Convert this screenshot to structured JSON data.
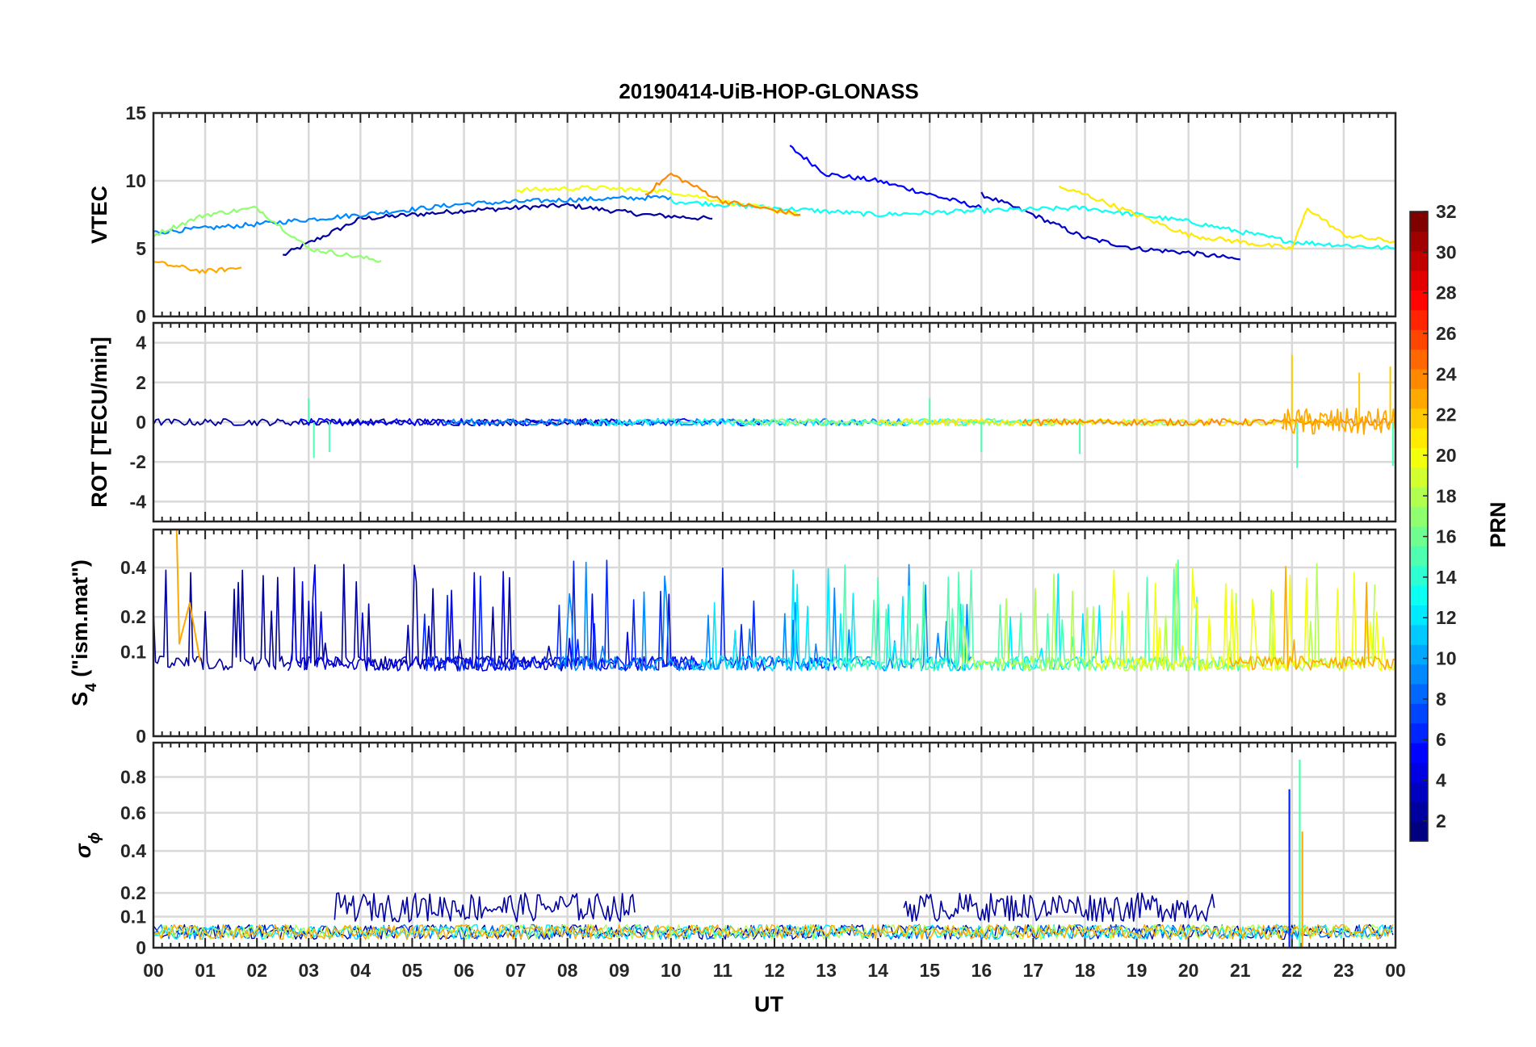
{
  "chart_data": [
    {
      "type": "line",
      "panel": "vtec",
      "title": "20190414-UiB-HOP-GLONASS",
      "ylabel": "VTEC",
      "xlabel": "",
      "ylim": [
        0,
        15
      ],
      "yticks": [
        0,
        5,
        10,
        15
      ],
      "series_note": "Multiple satellite tracks colored by PRN",
      "series": [
        {
          "name": "PRN 2",
          "prn": 2,
          "x": [
            2.5,
            4,
            6,
            8,
            9.5,
            10.8
          ],
          "y": [
            4.5,
            7.2,
            7.8,
            8.2,
            7.5,
            7.2
          ]
        },
        {
          "name": "PRN 5",
          "prn": 5,
          "x": [
            12.3,
            13,
            14,
            15,
            16
          ],
          "y": [
            12.5,
            10.5,
            10,
            9,
            8
          ]
        },
        {
          "name": "PRN 3",
          "prn": 3,
          "x": [
            16,
            17,
            18,
            19,
            20,
            21
          ],
          "y": [
            9,
            7.5,
            5.8,
            5,
            4.7,
            4.2
          ]
        },
        {
          "name": "PRN 9",
          "prn": 9,
          "x": [
            0,
            2,
            4,
            6,
            8,
            10
          ],
          "y": [
            6.2,
            6.8,
            7.5,
            8.3,
            8.6,
            8.8
          ]
        },
        {
          "name": "PRN 13",
          "prn": 13,
          "x": [
            10,
            12,
            14,
            16,
            18,
            20,
            22,
            24
          ],
          "y": [
            8.5,
            8,
            7.5,
            7.8,
            8,
            7,
            5.5,
            5
          ]
        },
        {
          "name": "PRN 17",
          "prn": 17,
          "x": [
            0,
            1,
            2,
            3,
            4.4
          ],
          "y": [
            6,
            7.5,
            8,
            5,
            4.1
          ]
        },
        {
          "name": "PRN 20",
          "prn": 20,
          "x": [
            7,
            8.5,
            10,
            11,
            12.5
          ],
          "y": [
            9.3,
            9.5,
            9.2,
            8.5,
            7.5
          ]
        },
        {
          "name": "PRN 23",
          "prn": 23,
          "x": [
            0,
            1,
            1.7
          ],
          "y": [
            4,
            3.3,
            3.6
          ]
        },
        {
          "name": "PRN 24",
          "prn": 24,
          "x": [
            9.5,
            10,
            11,
            12.5
          ],
          "y": [
            9,
            10.5,
            8.5,
            7.5
          ]
        },
        {
          "name": "PRN 21",
          "prn": 21,
          "x": [
            17.5,
            18,
            19,
            20,
            21,
            22,
            22.3,
            23,
            24
          ],
          "y": [
            9.5,
            9,
            7.5,
            6,
            5.5,
            5,
            8,
            6,
            5.5
          ]
        }
      ]
    },
    {
      "type": "line",
      "panel": "rot",
      "ylabel": "ROT [TECU/min]",
      "ylim": [
        -5,
        5
      ],
      "yticks": [
        -4,
        -2,
        0,
        2,
        4
      ],
      "series_note": "Rate of TEC near 0 with spikes around 03, 15 and 22-24 UT",
      "spikes": [
        {
          "x": 3.0,
          "y": 1.2
        },
        {
          "x": 3.1,
          "y": -1.8
        },
        {
          "x": 3.4,
          "y": -1.5
        },
        {
          "x": 15.0,
          "y": 1.2
        },
        {
          "x": 16.0,
          "y": -1.5
        },
        {
          "x": 17.9,
          "y": -1.6
        },
        {
          "x": 22.0,
          "y": 3.4
        },
        {
          "x": 22.1,
          "y": -2.3
        },
        {
          "x": 23.3,
          "y": 2.5
        },
        {
          "x": 23.9,
          "y": 2.8
        },
        {
          "x": 23.95,
          "y": -2.2
        }
      ]
    },
    {
      "type": "line",
      "panel": "s4",
      "ylabel_main": "S",
      "ylabel_sub": "4",
      "ylabel_rest": " (\"ism.mat\")",
      "ylim": [
        0,
        0.6
      ],
      "ylim_note": "nonlinear (sqrt-like) axis",
      "yticks": [
        0,
        0.1,
        0.2,
        0.4
      ],
      "series_note": "Amplitude scintillation index, baseline ~0.05-0.1 with bursts to ~0.5"
    },
    {
      "type": "line",
      "panel": "sigma_phi",
      "ylabel_main": "σ",
      "ylabel_sub": "ϕ",
      "ylim": [
        0,
        1.0
      ],
      "ylim_note": "nonlinear at low end",
      "yticks": [
        0,
        0.1,
        0.2,
        0.4,
        0.6,
        0.8
      ],
      "series_note": "Phase scintillation near 0.05, PRN 2 ~0.15 between 03-10 and 14-21 UT, spikes 0.73 and 0.9 at 22 UT",
      "spikes": [
        {
          "x": 21.95,
          "y": 0.73,
          "prn": 6
        },
        {
          "x": 22.15,
          "y": 0.9,
          "prn": 15
        },
        {
          "x": 22.2,
          "y": 0.5,
          "prn": 23
        }
      ]
    }
  ],
  "x_axis": {
    "label": "UT",
    "range": [
      0,
      24
    ],
    "ticks": [
      "00",
      "01",
      "02",
      "03",
      "04",
      "05",
      "06",
      "07",
      "08",
      "09",
      "10",
      "11",
      "12",
      "13",
      "14",
      "15",
      "16",
      "17",
      "18",
      "19",
      "20",
      "21",
      "22",
      "23",
      "00"
    ]
  },
  "colorbar": {
    "label": "PRN",
    "range": [
      1,
      32
    ],
    "ticks": [
      2,
      4,
      6,
      8,
      10,
      12,
      14,
      16,
      18,
      20,
      22,
      24,
      26,
      28,
      30,
      32
    ]
  },
  "colors": {
    "grid": "#d9d9d9",
    "axis": "#262626",
    "background": "#ffffff"
  }
}
